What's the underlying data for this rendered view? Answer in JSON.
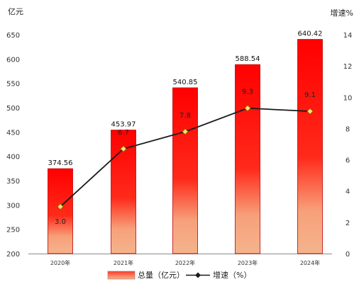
{
  "chart_data": {
    "type": "bar",
    "categories": [
      "2020年",
      "2021年",
      "2022年",
      "2023年",
      "2024年"
    ],
    "series": [
      {
        "name": "总量（亿元）",
        "type": "bar",
        "axis": "left",
        "values": [
          374.56,
          453.97,
          540.85,
          588.54,
          640.42
        ],
        "labels": [
          "374.56",
          "453.97",
          "540.85",
          "588.54",
          "640.42"
        ]
      },
      {
        "name": "增速（%）",
        "type": "line",
        "axis": "right",
        "values": [
          3.0,
          6.7,
          7.8,
          9.3,
          9.1
        ],
        "labels": [
          "3.0",
          "6.7",
          "7.8",
          "9.3",
          "9.1"
        ]
      }
    ],
    "ylabel": "亿元",
    "ylabel_right": "增速%",
    "ylim": [
      200,
      650
    ],
    "ylim_right": [
      0,
      14
    ],
    "yticks": [
      "200",
      "250",
      "300",
      "350",
      "400",
      "450",
      "500",
      "550",
      "600",
      "650"
    ],
    "yticks_right": [
      "0",
      "2",
      "4",
      "6",
      "8",
      "10",
      "12",
      "14"
    ],
    "grid": false,
    "legend_position": "bottom",
    "colors": {
      "bar_top": "#ff0000",
      "bar_bottom": "#f4b48c",
      "bar_border": "#c00000",
      "line": "#1a1a1a",
      "marker_fill": "#ffe36e",
      "marker_stroke": "#8a6d00"
    }
  }
}
